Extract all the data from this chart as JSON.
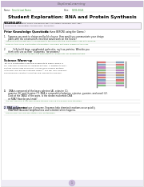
{
  "bg_color": "#ffffff",
  "header_bar_color": "#c9b8d5",
  "header_text": "ExploraLearning",
  "header_text_color": "#666666",
  "title": "Student Exploration: RNA and Protein Synthesis",
  "name_label": "Name:",
  "date_label": "Date:",
  "name_value": "First & Last Name",
  "date_value": "01/01/2024",
  "name_value_color": "#3a8a3a",
  "date_value_color": "#3a8a3a",
  "vocab_label": "VOCABULARY:",
  "vocab_text": "amino acid, anticodon, codon, messenger RNA, nucleotide, ribosome, RNA, RNA\npolymerase, transcription, transfer RNA, translation",
  "prior_label": "Prior Knowledge Questions",
  "prior_paren": "(Do these BEFORE using the Gizmo.)",
  "q1_text1": "1.   Suppose you want to design and build a house. How would you communicate your design",
  "q1_text2": "      plans with the construction crew that would work on the house?",
  "q1_ans1": "I believe that the best way to communicate the plans with the construction crew is to develop",
  "q1_ans2": "plans for the house construction introduction, and make materials copied for the crew.",
  "q2_text1": "2.          Cells build large, complicated molecules, such as proteins. What do you",
  "q2_text2": "      think cells use as their \"blueprints\" for proteins?",
  "q2_ans1": "Cells use DNA, since it contains the instructions or \"blueprints\" for making proteins.",
  "science_label": "Science Warm-up",
  "sci1": "Just as a construction crew uses blueprints to build a house, a",
  "sci2": "cell uses RNA molecules for building proteins. In addition to DNA,",
  "sci3": "another nucleic acid called RNA is involved in making proteins.",
  "sci4": "In the RNA and Protein Synthesis Gizmo™ you will learn how RNA",
  "sci5": "and ribosomes construct a protein and observe this process.",
  "q3_num": "1.",
  "q3_text1": "  DNA is composed of the bases adenine (A), cytosine (C),",
  "q3_text2": "      guanine (G), and thymine (T). RNA is composed of adenine, cytosine, guanine, and uracil (U).",
  "q3b_text1": "      Look at the TABLE of the pairs. Is the shown nucleotide DNA",
  "q3b_text2": "      or RNA? How do you know?",
  "q3_ans1": "It is DNA because it has base-paired strands, making it a double helix structure.",
  "q4_num": "2.",
  "q4_highlight": "RNA polymerase",
  "q4_text1": " is a type of enzyme. Enzymes help chemical reactions occur quickly.",
  "q4_text2": "      RNA RNA Ribosome amplifications and activities when happens.",
  "q4_ans1": "This has RNA polymerase starters and synthesizers.",
  "dna_left_colors": [
    "#e87878",
    "#88aac8",
    "#c888c8",
    "#88c888",
    "#c8a878",
    "#a888c8",
    "#e87878",
    "#88aac8",
    "#c888c8",
    "#88c888"
  ],
  "dna_right_colors": [
    "#88aac8",
    "#e87878",
    "#88c888",
    "#c888c8",
    "#a888c8",
    "#c8a878",
    "#88aac8",
    "#e87878",
    "#88c888",
    "#c888c8"
  ],
  "footer_circle_color": "#c8b8d8",
  "page_bg": "#f5f5f5",
  "border_color": "#cccccc",
  "answer_color": "#2d7a2d",
  "text_color": "#111111",
  "small_text_color": "#333333"
}
